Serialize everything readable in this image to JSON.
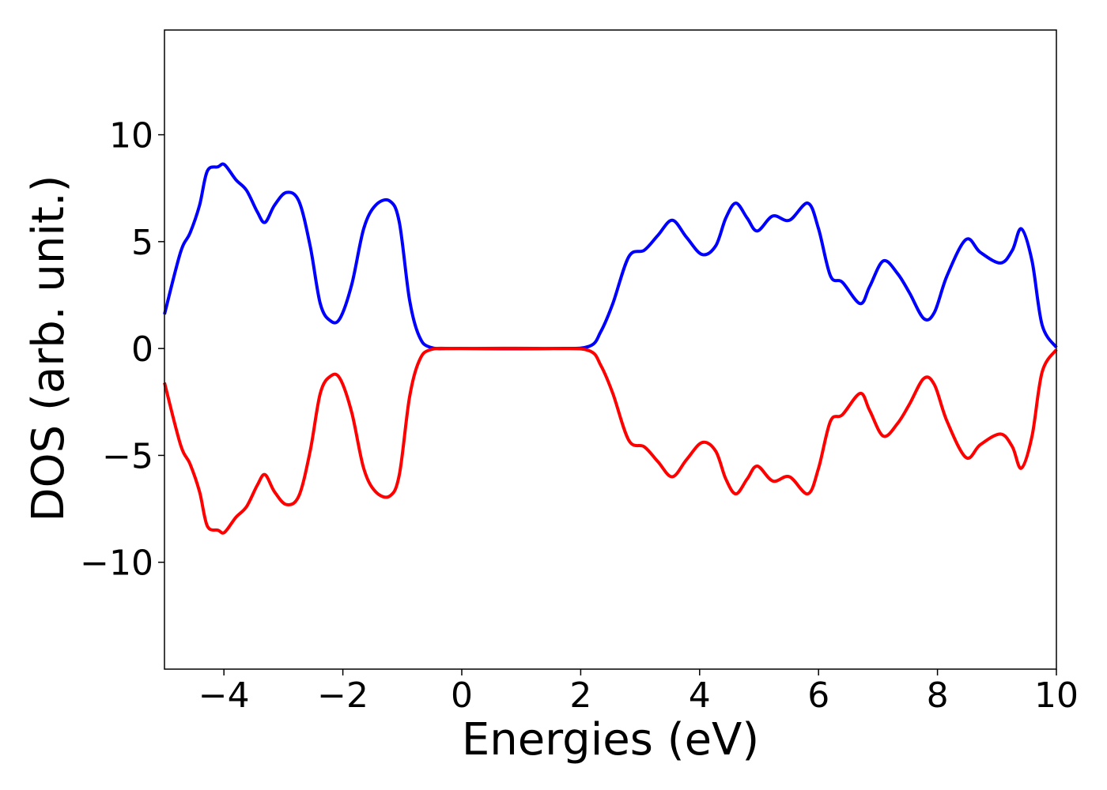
{
  "chart_data": {
    "type": "line",
    "xlabel": "Energies (eV)",
    "ylabel": "DOS (arb. unit.)",
    "x": [
      -5,
      -4.73,
      -4.57,
      -4.41,
      -4.28,
      -4.1,
      -3.99,
      -3.8,
      -3.62,
      -3.44,
      -3.31,
      -3.15,
      -2.95,
      -2.74,
      -2.55,
      -2.38,
      -2.21,
      -2.05,
      -1.85,
      -1.65,
      -1.45,
      -1.21,
      -1.05,
      -0.88,
      -0.72,
      -0.52,
      0,
      1.54,
      2.14,
      2.34,
      2.54,
      2.81,
      3.07,
      3.3,
      3.54,
      3.78,
      4.04,
      4.27,
      4.44,
      4.61,
      4.8,
      4.97,
      5.23,
      5.51,
      5.82,
      6.0,
      6.2,
      6.4,
      6.7,
      6.86,
      7.09,
      7.33,
      7.53,
      7.77,
      7.95,
      8.16,
      8.48,
      8.72,
      9.06,
      9.26,
      9.41,
      9.59,
      9.76,
      10
    ],
    "series": [
      {
        "color": "#0000ff",
        "values": [
          1.6,
          4.5,
          5.4,
          6.7,
          8.3,
          8.5,
          8.6,
          7.9,
          7.4,
          6.4,
          5.9,
          6.7,
          7.3,
          6.9,
          4.8,
          2.1,
          1.3,
          1.4,
          3.0,
          5.6,
          6.7,
          6.9,
          5.9,
          2.3,
          0.6,
          0.05,
          0,
          0,
          0.1,
          0.8,
          2.1,
          4.3,
          4.6,
          5.3,
          6.0,
          5.2,
          4.4,
          4.8,
          6.1,
          6.8,
          6.1,
          5.5,
          6.2,
          6.0,
          6.8,
          5.6,
          3.4,
          3.1,
          2.1,
          2.9,
          4.1,
          3.5,
          2.6,
          1.4,
          1.7,
          3.4,
          5.1,
          4.5,
          4.0,
          4.6,
          5.6,
          4.1,
          1.1,
          0.05
        ]
      },
      {
        "color": "#ff0000",
        "values": [
          -1.6,
          -4.5,
          -5.4,
          -6.7,
          -8.3,
          -8.5,
          -8.6,
          -7.9,
          -7.4,
          -6.4,
          -5.9,
          -6.7,
          -7.3,
          -6.9,
          -4.8,
          -2.1,
          -1.3,
          -1.4,
          -3.0,
          -5.6,
          -6.7,
          -6.9,
          -5.9,
          -2.3,
          -0.6,
          -0.05,
          0,
          0,
          -0.1,
          -0.8,
          -2.1,
          -4.3,
          -4.6,
          -5.3,
          -6.0,
          -5.2,
          -4.4,
          -4.8,
          -6.1,
          -6.8,
          -6.1,
          -5.5,
          -6.2,
          -6.0,
          -6.8,
          -5.6,
          -3.4,
          -3.1,
          -2.1,
          -2.9,
          -4.1,
          -3.5,
          -2.6,
          -1.4,
          -1.7,
          -3.4,
          -5.1,
          -4.5,
          -4.0,
          -4.6,
          -5.6,
          -4.1,
          -1.1,
          -0.05
        ]
      }
    ],
    "xlim": [
      -5,
      10
    ],
    "xticks": [
      {
        "value": -4,
        "label": "−4"
      },
      {
        "value": -2,
        "label": "−2"
      },
      0,
      2,
      4,
      6,
      8,
      10
    ],
    "ylim": [
      -15,
      14.9
    ],
    "yticks": [
      {
        "value": -10,
        "label": "−10"
      },
      {
        "value": -5,
        "label": "−5"
      },
      0,
      5,
      10
    ]
  }
}
